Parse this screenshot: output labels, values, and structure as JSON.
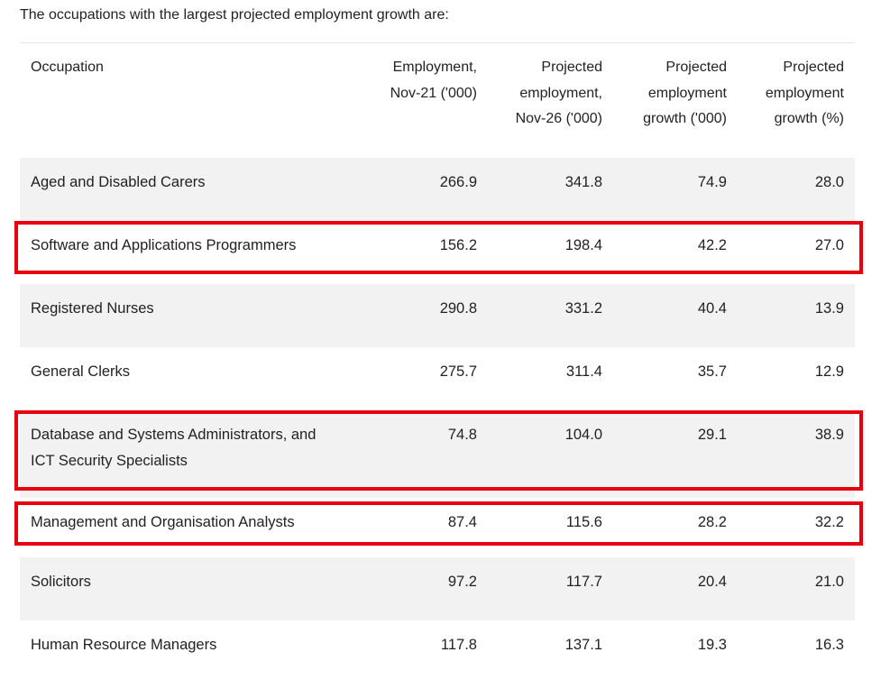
{
  "intro": "The occupations with the largest projected employment growth are:",
  "table": {
    "headers": [
      [
        "Occupation"
      ],
      [
        "Employment,",
        "Nov-21 ('000)"
      ],
      [
        "Projected",
        "employment,",
        "Nov-26 ('000)"
      ],
      [
        "Projected",
        "employment",
        "growth ('000)"
      ],
      [
        "Projected",
        "employment",
        "growth (%)"
      ]
    ],
    "rows": [
      {
        "occupation": [
          "Aged and Disabled Carers"
        ],
        "emp": "266.9",
        "proj": "341.8",
        "growth": "74.9",
        "pct": "28.0",
        "highlighted": false
      },
      {
        "occupation": [
          "Software and Applications Programmers"
        ],
        "emp": "156.2",
        "proj": "198.4",
        "growth": "42.2",
        "pct": "27.0",
        "highlighted": true
      },
      {
        "occupation": [
          "Registered Nurses"
        ],
        "emp": "290.8",
        "proj": "331.2",
        "growth": "40.4",
        "pct": "13.9",
        "highlighted": false
      },
      {
        "occupation": [
          "General Clerks"
        ],
        "emp": "275.7",
        "proj": "311.4",
        "growth": "35.7",
        "pct": "12.9",
        "highlighted": false
      },
      {
        "occupation": [
          "Database and Systems Administrators, and",
          "ICT Security Specialists"
        ],
        "emp": "74.8",
        "proj": "104.0",
        "growth": "29.1",
        "pct": "38.9",
        "highlighted": true
      },
      {
        "occupation": [
          "Management and Organisation Analysts"
        ],
        "emp": "87.4",
        "proj": "115.6",
        "growth": "28.2",
        "pct": "32.2",
        "highlighted": true
      },
      {
        "occupation": [
          "Solicitors"
        ],
        "emp": "97.2",
        "proj": "117.7",
        "growth": "20.4",
        "pct": "21.0",
        "highlighted": false
      },
      {
        "occupation": [
          "Human Resource Managers"
        ],
        "emp": "117.8",
        "proj": "137.1",
        "growth": "19.3",
        "pct": "16.3",
        "highlighted": false
      }
    ]
  },
  "colors": {
    "highlight": "#e8000f",
    "shade": "#f2f2f2"
  }
}
